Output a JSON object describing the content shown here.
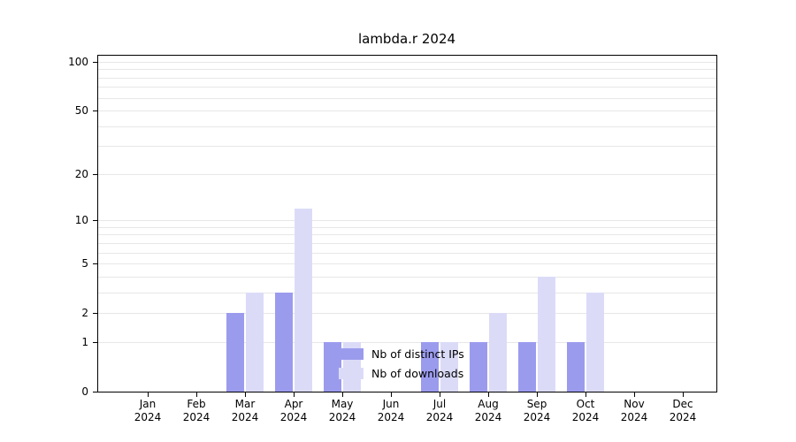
{
  "chart_data": {
    "type": "bar",
    "title": "lambda.r 2024",
    "year": "2024",
    "categories": [
      "Jan",
      "Feb",
      "Mar",
      "Apr",
      "May",
      "Jun",
      "Jul",
      "Aug",
      "Sep",
      "Oct",
      "Nov",
      "Dec"
    ],
    "series": [
      {
        "name": "Nb of distinct IPs",
        "color": "#9b9bee",
        "values": [
          0,
          0,
          2,
          3,
          1,
          0,
          1,
          1,
          1,
          1,
          0,
          0
        ]
      },
      {
        "name": "Nb of downloads",
        "color": "#dbdbf8",
        "values": [
          0,
          0,
          3,
          12,
          1,
          0,
          1,
          2,
          4,
          3,
          0,
          0
        ]
      }
    ],
    "yticks": [
      0,
      1,
      2,
      5,
      10,
      20,
      50,
      100
    ],
    "minor_gridlines": [
      1,
      2,
      3,
      4,
      5,
      6,
      7,
      8,
      9,
      10,
      20,
      30,
      40,
      50,
      60,
      70,
      80,
      90,
      100
    ],
    "scale": "log1p",
    "ylim": [
      0,
      110
    ],
    "xlabel": "",
    "ylabel": "",
    "grid": "horizontal",
    "legend_position": "inside-bottom-center"
  },
  "colors": {
    "background": "#ffffff",
    "axis": "#000000",
    "grid": "#e7e7e7",
    "text": "#000000"
  }
}
